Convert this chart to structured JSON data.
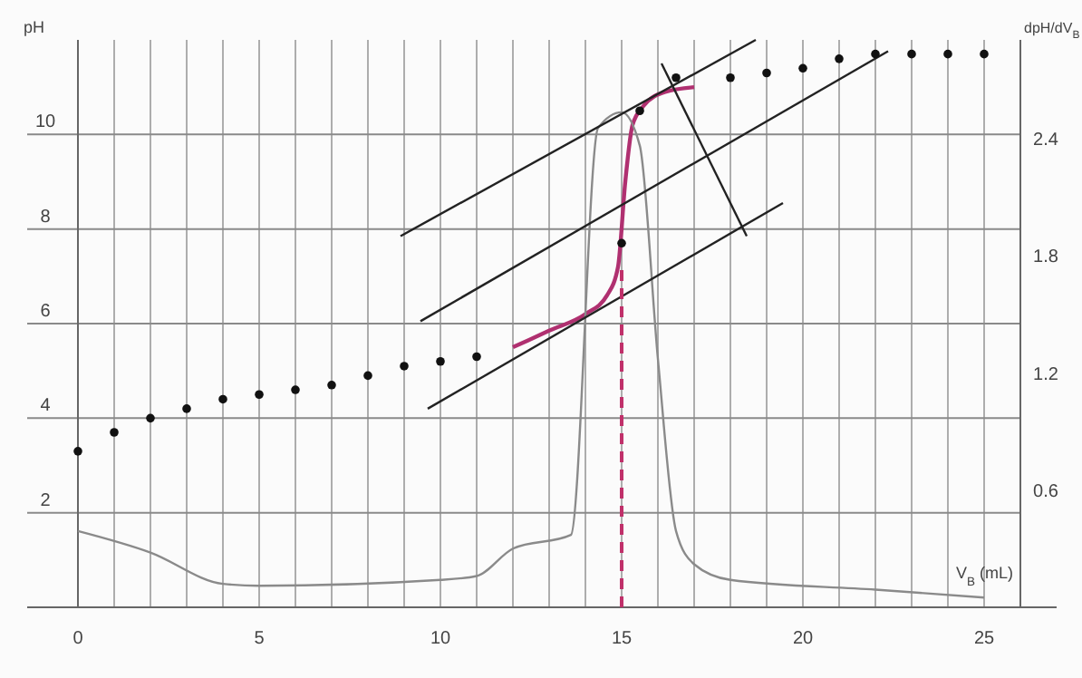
{
  "chart_data": {
    "type": "line",
    "ylabel": "pH",
    "y2label": "dpH/dV$_{B}$",
    "xlabel": "V$_{B}$ (mL)",
    "xlim": [
      0,
      26
    ],
    "ylim": [
      0,
      12
    ],
    "y2lim": [
      0,
      2.9
    ],
    "xticks": [
      0,
      {
        "value": 1,
        "label": null
      },
      {
        "value": 2,
        "label": null
      },
      {
        "value": 3,
        "label": null
      },
      {
        "value": 4,
        "label": null
      },
      5,
      {
        "value": 6,
        "label": null
      },
      {
        "value": 7,
        "label": null
      },
      {
        "value": 8,
        "label": null
      },
      {
        "value": 9,
        "label": null
      },
      10,
      {
        "value": 11,
        "label": null
      },
      {
        "value": 12,
        "label": null
      },
      {
        "value": 13,
        "label": null
      },
      {
        "value": 14,
        "label": null
      },
      15,
      {
        "value": 16,
        "label": null
      },
      {
        "value": 17,
        "label": null
      },
      {
        "value": 18,
        "label": null
      },
      {
        "value": 19,
        "label": null
      },
      20,
      {
        "value": 21,
        "label": null
      },
      {
        "value": 22,
        "label": null
      },
      {
        "value": 23,
        "label": null
      },
      {
        "value": 24,
        "label": null
      },
      25
    ],
    "yticks": [
      2,
      4,
      6,
      8,
      10
    ],
    "y2ticks": [
      0.6,
      1.2,
      1.8,
      2.4
    ],
    "grid": true,
    "series": [
      {
        "type": "scatter",
        "marker": "circle",
        "color": "#111111",
        "x": [
          0,
          1,
          2,
          3,
          4,
          5,
          6,
          7,
          8,
          9,
          10,
          11,
          15,
          15.5,
          16.5,
          18,
          19,
          20,
          21,
          22,
          23,
          24,
          25
        ],
        "values": [
          3.3,
          3.7,
          4.0,
          4.2,
          4.4,
          4.5,
          4.6,
          4.7,
          4.9,
          5.1,
          5.2,
          5.3,
          7.7,
          10.5,
          11.2,
          11.2,
          11.3,
          11.4,
          11.6,
          11.7,
          11.7,
          11.7,
          11.7
        ]
      },
      {
        "marker": "none",
        "color": "#b03070",
        "x": [
          12,
          13,
          14,
          14.6,
          14.9,
          15.1,
          15.3,
          15.6,
          16.2,
          17
        ],
        "values": [
          5.5,
          5.85,
          6.2,
          6.6,
          7.2,
          9.0,
          10.2,
          10.6,
          10.9,
          11.0
        ]
      },
      {
        "marker": "none",
        "axis": "y2",
        "color": "#8a8a8a",
        "x": [
          0,
          2,
          4,
          5,
          10,
          11,
          12,
          13.6,
          14.35,
          15,
          15.5,
          16,
          16.5,
          17,
          18,
          22,
          25
        ],
        "values": [
          0.39,
          0.28,
          0.12,
          0.11,
          0.14,
          0.16,
          0.3,
          0.37,
          2.45,
          2.53,
          2.36,
          1.27,
          0.39,
          0.22,
          0.14,
          0.09,
          0.05
        ]
      },
      {
        "marker": "none",
        "color": "#222222",
        "x": [
          8.9,
          18.7
        ],
        "values": [
          7.85,
          12
        ]
      },
      {
        "marker": "none",
        "color": "#222222",
        "x": [
          9.45,
          22.35
        ],
        "values": [
          6.05,
          11.76
        ]
      },
      {
        "marker": "none",
        "color": "#222222",
        "x": [
          9.65,
          19.45
        ],
        "values": [
          4.2,
          8.55
        ]
      },
      {
        "marker": "none",
        "color": "#222222",
        "x": [
          16.1,
          18.45
        ],
        "values": [
          11.5,
          7.85
        ]
      }
    ],
    "ref_lines": [
      {
        "axis": "x",
        "value": 15,
        "color": "#c0306a",
        "line_style": "dashed"
      }
    ]
  }
}
